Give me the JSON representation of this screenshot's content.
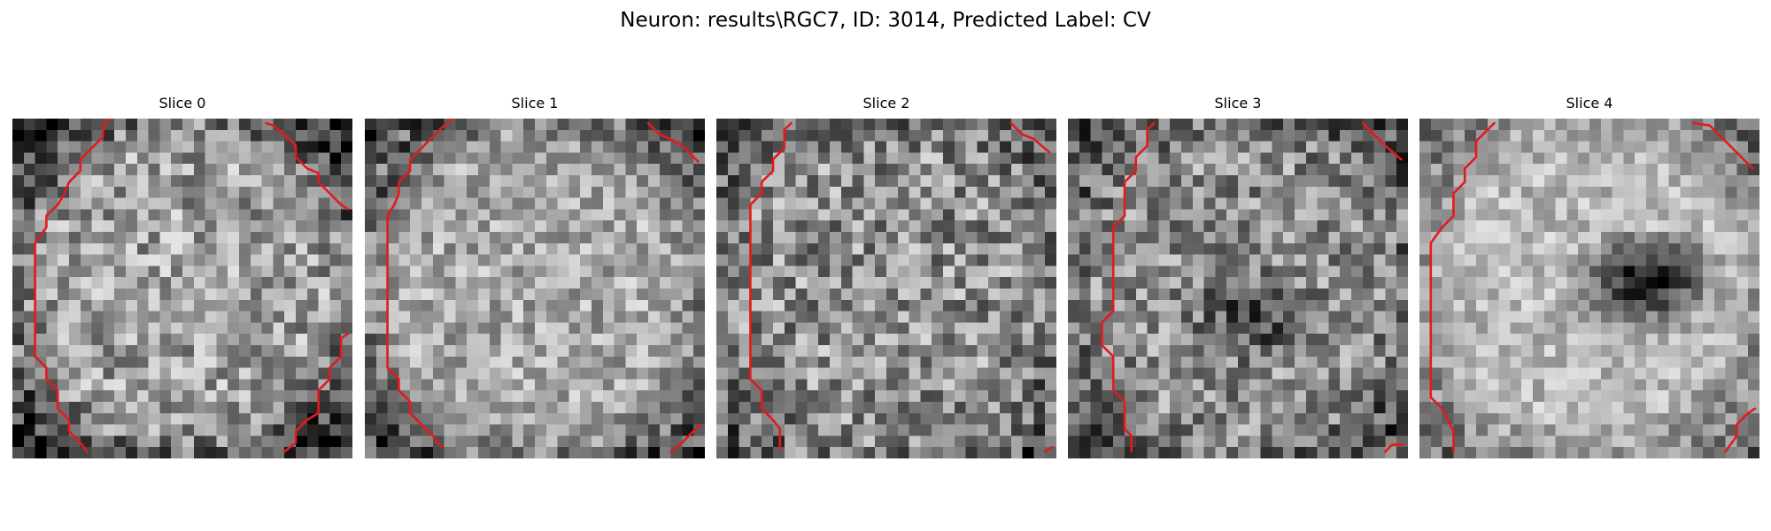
{
  "figure": {
    "title": "Neuron: results\\RGC7, ID: 3014, Predicted Label: CV"
  },
  "panels": [
    {
      "title": "Slice 0",
      "image": {
        "rows": 30,
        "cols": 30,
        "seed": 11,
        "base": 0.62,
        "spread": 0.55,
        "ring_darkness": 0.45,
        "dark_blob": null
      },
      "contour": {
        "color": "#e41a1c",
        "segments": [
          [
            [
              8.6,
              0.0
            ],
            [
              8.0,
              0.6
            ],
            [
              8.0,
              1.6
            ],
            [
              7.0,
              2.6
            ],
            [
              6.0,
              3.6
            ],
            [
              6.0,
              4.6
            ],
            [
              5.0,
              5.6
            ],
            [
              4.6,
              6.6
            ],
            [
              4.0,
              7.6
            ],
            [
              3.0,
              8.6
            ],
            [
              3.0,
              9.6
            ],
            [
              2.0,
              11.0
            ],
            [
              2.0,
              21.0
            ],
            [
              3.0,
              22.0
            ],
            [
              3.0,
              23.0
            ],
            [
              4.0,
              24.0
            ],
            [
              4.0,
              25.6
            ],
            [
              5.0,
              26.6
            ],
            [
              5.0,
              27.6
            ],
            [
              6.0,
              28.6
            ],
            [
              6.6,
              29.4
            ]
          ],
          [
            [
              22.4,
              0.4
            ],
            [
              23.0,
              0.6
            ],
            [
              24.0,
              1.4
            ],
            [
              25.0,
              2.4
            ],
            [
              25.0,
              3.4
            ],
            [
              26.0,
              4.4
            ],
            [
              27.0,
              4.8
            ],
            [
              27.0,
              5.6
            ],
            [
              28.0,
              6.6
            ],
            [
              29.0,
              7.6
            ],
            [
              29.6,
              8.0
            ]
          ],
          [
            [
              29.6,
              19.0
            ],
            [
              29.0,
              19.4
            ],
            [
              29.0,
              21.0
            ],
            [
              28.0,
              22.0
            ],
            [
              28.0,
              23.0
            ],
            [
              27.0,
              24.0
            ],
            [
              27.0,
              26.0
            ],
            [
              26.0,
              26.6
            ],
            [
              25.0,
              27.6
            ],
            [
              25.0,
              28.6
            ],
            [
              24.0,
              29.4
            ]
          ]
        ]
      }
    },
    {
      "title": "Slice 1",
      "image": {
        "rows": 30,
        "cols": 30,
        "seed": 23,
        "base": 0.66,
        "spread": 0.45,
        "ring_darkness": 0.4,
        "dark_blob": null
      },
      "contour": {
        "color": "#e41a1c",
        "segments": [
          [
            [
              7.8,
              0.0
            ],
            [
              7.0,
              0.6
            ],
            [
              6.0,
              1.6
            ],
            [
              5.0,
              2.6
            ],
            [
              4.0,
              3.6
            ],
            [
              4.0,
              4.6
            ],
            [
              3.0,
              5.6
            ],
            [
              3.0,
              6.6
            ],
            [
              2.6,
              7.6
            ],
            [
              2.0,
              8.6
            ],
            [
              2.0,
              22.0
            ],
            [
              3.0,
              23.0
            ],
            [
              3.0,
              24.0
            ],
            [
              4.0,
              25.0
            ],
            [
              4.0,
              26.0
            ],
            [
              5.0,
              27.0
            ],
            [
              6.0,
              28.0
            ],
            [
              6.8,
              29.0
            ]
          ],
          [
            [
              25.0,
              0.4
            ],
            [
              26.0,
              1.4
            ],
            [
              27.0,
              1.8
            ],
            [
              28.0,
              2.4
            ],
            [
              29.4,
              3.8
            ]
          ],
          [
            [
              29.6,
              27.0
            ],
            [
              28.0,
              28.6
            ],
            [
              27.0,
              29.4
            ]
          ]
        ]
      }
    },
    {
      "title": "Slice 2",
      "image": {
        "rows": 30,
        "cols": 30,
        "seed": 37,
        "base": 0.56,
        "spread": 0.6,
        "ring_darkness": 0.2,
        "dark_blob": null
      },
      "contour": {
        "color": "#e41a1c",
        "segments": [
          [
            [
              6.6,
              0.4
            ],
            [
              6.0,
              1.0
            ],
            [
              6.0,
              2.6
            ],
            [
              5.0,
              3.6
            ],
            [
              5.0,
              4.6
            ],
            [
              4.0,
              5.6
            ],
            [
              4.0,
              6.6
            ],
            [
              3.0,
              7.6
            ],
            [
              3.0,
              23.0
            ],
            [
              4.0,
              24.0
            ],
            [
              4.0,
              25.6
            ],
            [
              5.0,
              26.6
            ],
            [
              5.6,
              27.4
            ],
            [
              5.6,
              29.2
            ]
          ],
          [
            [
              26.0,
              0.4
            ],
            [
              27.0,
              1.4
            ],
            [
              28.0,
              1.8
            ],
            [
              29.4,
              3.0
            ]
          ],
          [
            [
              29.6,
              29.0
            ],
            [
              29.0,
              29.4
            ]
          ]
        ]
      }
    },
    {
      "title": "Slice 3",
      "image": {
        "rows": 30,
        "cols": 30,
        "seed": 53,
        "base": 0.55,
        "spread": 0.55,
        "ring_darkness": 0.25,
        "dark_blob": {
          "cx": 16.0,
          "cy": 17.0,
          "r": 4.5,
          "strength": 0.25
        }
      },
      "contour": {
        "color": "#e41a1c",
        "segments": [
          [
            [
              7.6,
              0.4
            ],
            [
              7.0,
              1.0
            ],
            [
              7.0,
              2.4
            ],
            [
              6.0,
              3.4
            ],
            [
              6.0,
              4.6
            ],
            [
              5.0,
              5.6
            ],
            [
              5.0,
              8.6
            ],
            [
              4.0,
              9.6
            ],
            [
              4.0,
              17.0
            ],
            [
              3.0,
              18.0
            ],
            [
              3.0,
              20.0
            ],
            [
              4.0,
              21.0
            ],
            [
              4.0,
              24.0
            ],
            [
              5.0,
              25.0
            ],
            [
              5.0,
              27.4
            ],
            [
              5.6,
              28.0
            ],
            [
              5.6,
              29.4
            ]
          ],
          [
            [
              26.0,
              0.4
            ],
            [
              27.0,
              1.4
            ],
            [
              28.0,
              2.4
            ],
            [
              29.4,
              3.6
            ]
          ],
          [
            [
              28.0,
              29.4
            ],
            [
              28.6,
              28.8
            ],
            [
              29.6,
              28.8
            ]
          ]
        ]
      }
    },
    {
      "title": "Slice 4",
      "image": {
        "rows": 30,
        "cols": 30,
        "seed": 71,
        "base": 0.72,
        "spread": 0.35,
        "ring_darkness": 0.3,
        "dark_blob": {
          "cx": 19.5,
          "cy": 13.8,
          "r": 5.0,
          "strength": 0.55
        }
      },
      "contour": {
        "color": "#e41a1c",
        "segments": [
          [
            [
              6.6,
              0.4
            ],
            [
              6.0,
              1.0
            ],
            [
              5.0,
              2.0
            ],
            [
              5.0,
              3.4
            ],
            [
              4.0,
              4.4
            ],
            [
              4.0,
              5.6
            ],
            [
              3.0,
              6.6
            ],
            [
              3.0,
              8.6
            ],
            [
              2.0,
              9.6
            ],
            [
              1.0,
              11.0
            ],
            [
              1.0,
              24.6
            ],
            [
              2.0,
              25.6
            ],
            [
              2.6,
              26.8
            ],
            [
              3.0,
              27.6
            ],
            [
              3.0,
              29.4
            ]
          ],
          [
            [
              24.2,
              0.4
            ],
            [
              25.6,
              0.6
            ],
            [
              27.0,
              2.0
            ],
            [
              28.0,
              3.0
            ],
            [
              29.4,
              4.4
            ]
          ],
          [
            [
              29.6,
              25.6
            ],
            [
              29.0,
              26.0
            ],
            [
              28.0,
              27.0
            ],
            [
              28.0,
              28.0
            ],
            [
              27.0,
              29.4
            ]
          ]
        ]
      }
    }
  ]
}
